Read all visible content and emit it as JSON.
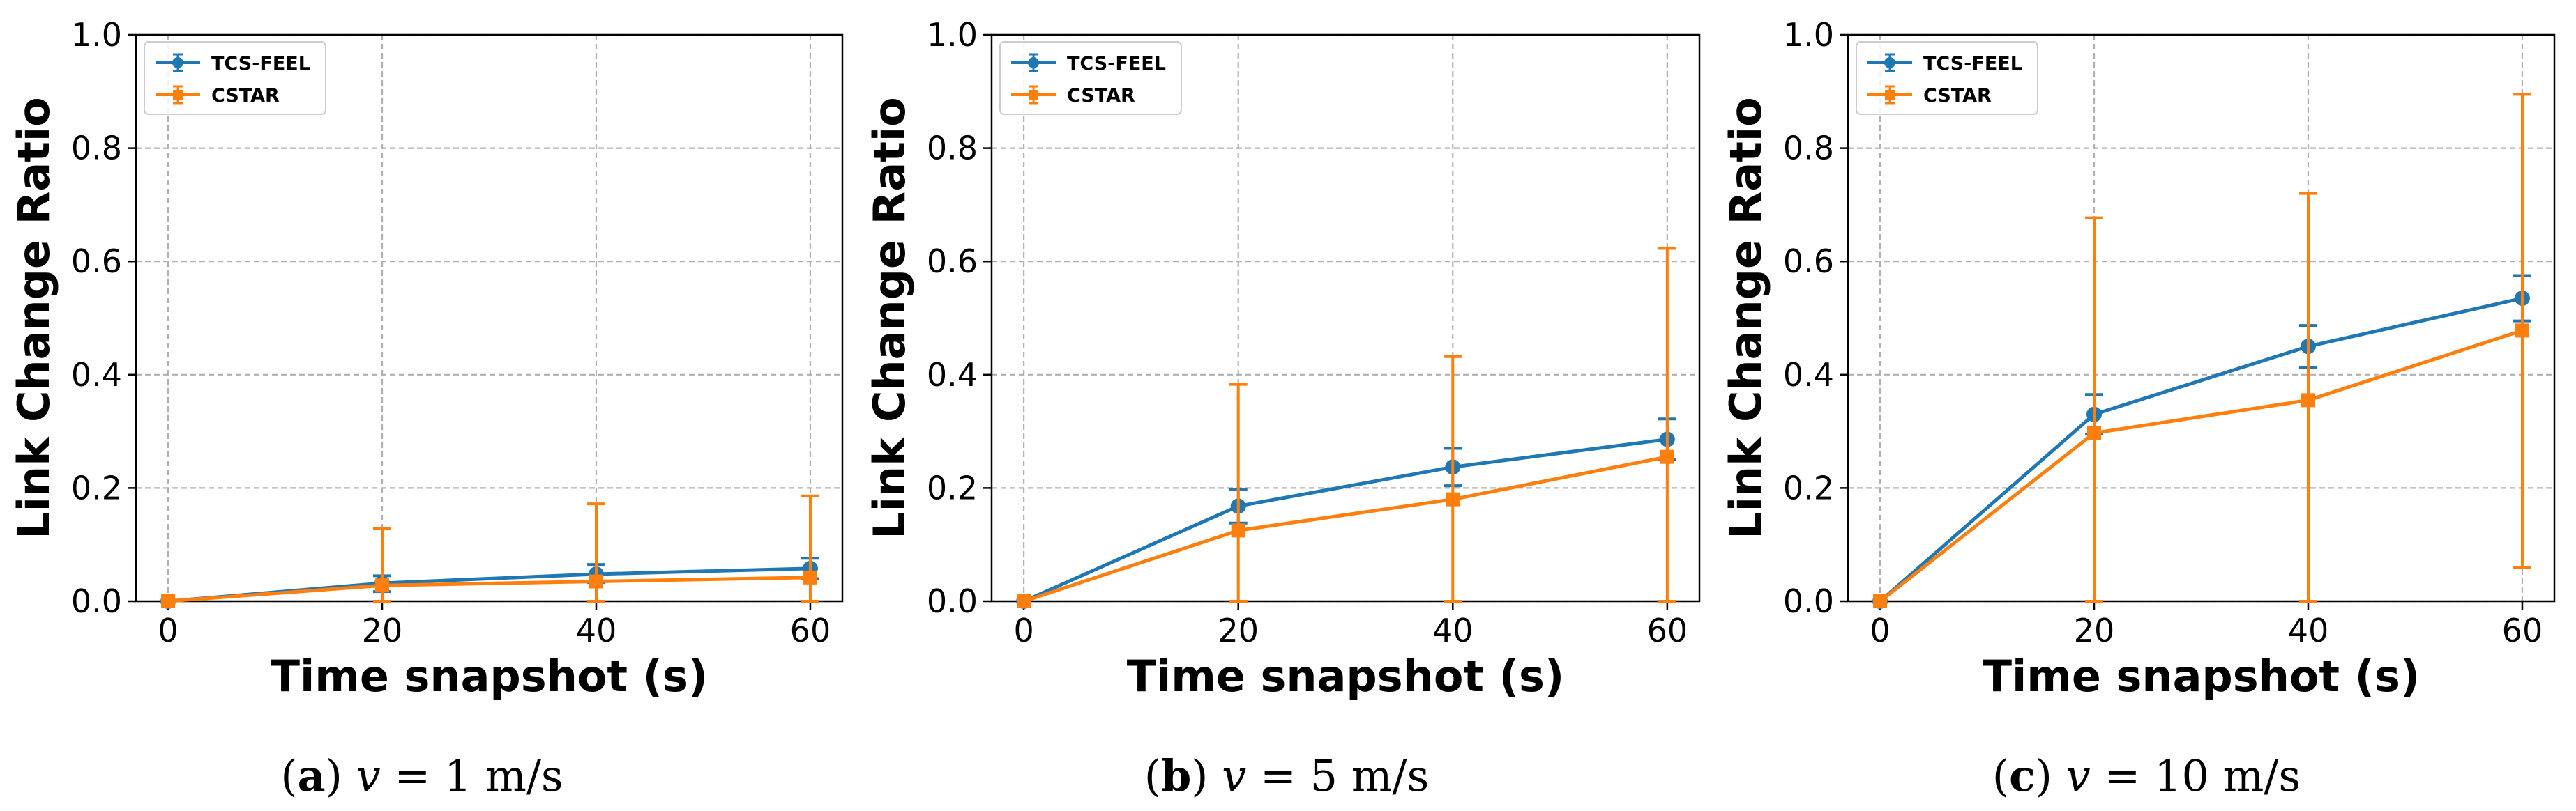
{
  "colors": {
    "tcs_feel": "#1f77b4",
    "cstar": "#ff7f0e",
    "grid": "#b0b0b0",
    "axis": "#000000"
  },
  "chart_data": [
    {
      "type": "line",
      "caption": {
        "letter": "a",
        "variable": "v",
        "equals": "=",
        "value": "1 m/s"
      },
      "xlabel": "Time snapshot (s)",
      "ylabel": "Link Change Ratio",
      "x": [
        0,
        20,
        40,
        60
      ],
      "xticks": [
        "0",
        "20",
        "40",
        "60"
      ],
      "yticks": [
        "0.0",
        "0.2",
        "0.4",
        "0.6",
        "0.8",
        "1.0"
      ],
      "xlim": [
        -3,
        63
      ],
      "ylim": [
        0,
        1
      ],
      "grid": true,
      "legend_position": "top-left",
      "series": [
        {
          "name": "TCS-FEEL",
          "marker": "circle",
          "values": [
            0.0,
            0.032,
            0.048,
            0.058
          ],
          "err_low": [
            0.0,
            0.015,
            0.015,
            0.018
          ],
          "err_high": [
            0.0,
            0.013,
            0.017,
            0.018
          ]
        },
        {
          "name": "CSTAR",
          "marker": "square",
          "values": [
            0.0,
            0.028,
            0.035,
            0.042
          ],
          "err_low": [
            0.0,
            0.028,
            0.035,
            0.042
          ],
          "err_high": [
            0.0,
            0.1,
            0.137,
            0.144
          ]
        }
      ]
    },
    {
      "type": "line",
      "caption": {
        "letter": "b",
        "variable": "v",
        "equals": "=",
        "value": "5 m/s"
      },
      "xlabel": "Time snapshot (s)",
      "ylabel": "Link Change Ratio",
      "x": [
        0,
        20,
        40,
        60
      ],
      "xticks": [
        "0",
        "20",
        "40",
        "60"
      ],
      "yticks": [
        "0.0",
        "0.2",
        "0.4",
        "0.6",
        "0.8",
        "1.0"
      ],
      "xlim": [
        -3,
        63
      ],
      "ylim": [
        0,
        1
      ],
      "grid": true,
      "legend_position": "top-left",
      "series": [
        {
          "name": "TCS-FEEL",
          "marker": "circle",
          "values": [
            0.0,
            0.168,
            0.237,
            0.286
          ],
          "err_low": [
            0.0,
            0.03,
            0.033,
            0.036
          ],
          "err_high": [
            0.0,
            0.03,
            0.033,
            0.036
          ]
        },
        {
          "name": "CSTAR",
          "marker": "square",
          "values": [
            0.0,
            0.125,
            0.18,
            0.255
          ],
          "err_low": [
            0.0,
            0.125,
            0.18,
            0.255
          ],
          "err_high": [
            0.0,
            0.258,
            0.252,
            0.368
          ]
        }
      ]
    },
    {
      "type": "line",
      "caption": {
        "letter": "c",
        "variable": "v",
        "equals": "=",
        "value": "10 m/s"
      },
      "xlabel": "Time snapshot (s)",
      "ylabel": "Link Change Ratio",
      "x": [
        0,
        20,
        40,
        60
      ],
      "xticks": [
        "0",
        "20",
        "40",
        "60"
      ],
      "yticks": [
        "0.0",
        "0.2",
        "0.4",
        "0.6",
        "0.8",
        "1.0"
      ],
      "xlim": [
        -3,
        63
      ],
      "ylim": [
        0,
        1
      ],
      "grid": true,
      "legend_position": "top-left",
      "series": [
        {
          "name": "TCS-FEEL",
          "marker": "circle",
          "values": [
            0.0,
            0.33,
            0.45,
            0.535
          ],
          "err_low": [
            0.0,
            0.035,
            0.037,
            0.04
          ],
          "err_high": [
            0.0,
            0.035,
            0.037,
            0.04
          ]
        },
        {
          "name": "CSTAR",
          "marker": "square",
          "values": [
            0.0,
            0.297,
            0.355,
            0.478
          ],
          "err_low": [
            0.0,
            0.297,
            0.355,
            0.418
          ],
          "err_high": [
            0.0,
            0.38,
            0.365,
            0.417
          ]
        }
      ]
    }
  ]
}
